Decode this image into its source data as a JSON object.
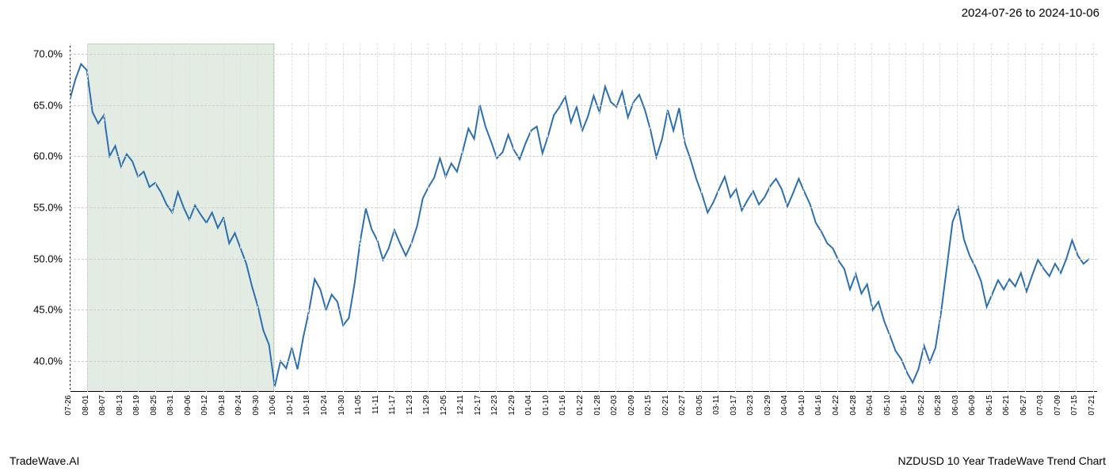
{
  "header": {
    "date_range": "2024-07-26 to 2024-10-06"
  },
  "footer": {
    "left": "TradeWave.AI",
    "right": "NZDUSD 10 Year TradeWave Trend Chart"
  },
  "chart": {
    "type": "line",
    "background_color": "#ffffff",
    "grid_color_h": "#cccccc",
    "grid_color_v": "#e0e0e0",
    "axis_color": "#000000",
    "line_color": "#2b6fb0",
    "line_width": 2,
    "highlight_fill": "rgba(144,180,140,0.25)",
    "highlight_border": "rgba(100,140,100,0.3)",
    "ylim": [
      37,
      71
    ],
    "y_ticks": [
      40,
      45,
      50,
      55,
      60,
      65,
      70
    ],
    "y_tick_labels": [
      "40.0%",
      "45.0%",
      "50.0%",
      "55.0%",
      "60.0%",
      "65.0%",
      "70.0%"
    ],
    "x_tick_labels": [
      "07-26",
      "08-01",
      "08-07",
      "08-13",
      "08-19",
      "08-25",
      "08-31",
      "09-06",
      "09-12",
      "09-18",
      "09-24",
      "09-30",
      "10-06",
      "10-12",
      "10-18",
      "10-24",
      "10-30",
      "11-05",
      "11-11",
      "11-17",
      "11-23",
      "11-29",
      "12-05",
      "12-11",
      "12-17",
      "12-23",
      "12-29",
      "01-04",
      "01-10",
      "01-16",
      "01-22",
      "01-28",
      "02-03",
      "02-09",
      "02-15",
      "02-21",
      "02-27",
      "03-05",
      "03-11",
      "03-17",
      "03-23",
      "03-29",
      "04-04",
      "04-10",
      "04-16",
      "04-22",
      "04-28",
      "05-04",
      "05-10",
      "05-16",
      "05-22",
      "05-28",
      "06-03",
      "06-09",
      "06-15",
      "06-21",
      "06-27",
      "07-03",
      "07-09",
      "07-15",
      "07-21"
    ],
    "highlight_range_idx": [
      1,
      12
    ],
    "series": [
      {
        "x": 0,
        "y": 65.5
      },
      {
        "x": 1,
        "y": 67.5
      },
      {
        "x": 2,
        "y": 69.0
      },
      {
        "x": 3,
        "y": 68.4
      },
      {
        "x": 4,
        "y": 64.3
      },
      {
        "x": 5,
        "y": 63.2
      },
      {
        "x": 6,
        "y": 64.0
      },
      {
        "x": 7,
        "y": 60.0
      },
      {
        "x": 8,
        "y": 61.0
      },
      {
        "x": 9,
        "y": 59.0
      },
      {
        "x": 10,
        "y": 60.2
      },
      {
        "x": 11,
        "y": 59.5
      },
      {
        "x": 12,
        "y": 58.0
      },
      {
        "x": 13,
        "y": 58.5
      },
      {
        "x": 14,
        "y": 57.0
      },
      {
        "x": 15,
        "y": 57.4
      },
      {
        "x": 16,
        "y": 56.5
      },
      {
        "x": 17,
        "y": 55.3
      },
      {
        "x": 18,
        "y": 54.5
      },
      {
        "x": 19,
        "y": 56.5
      },
      {
        "x": 20,
        "y": 55.0
      },
      {
        "x": 21,
        "y": 53.8
      },
      {
        "x": 22,
        "y": 55.2
      },
      {
        "x": 23,
        "y": 54.3
      },
      {
        "x": 24,
        "y": 53.5
      },
      {
        "x": 25,
        "y": 54.5
      },
      {
        "x": 26,
        "y": 53.0
      },
      {
        "x": 27,
        "y": 54.0
      },
      {
        "x": 28,
        "y": 51.5
      },
      {
        "x": 29,
        "y": 52.5
      },
      {
        "x": 30,
        "y": 51.0
      },
      {
        "x": 31,
        "y": 49.5
      },
      {
        "x": 32,
        "y": 47.3
      },
      {
        "x": 33,
        "y": 45.4
      },
      {
        "x": 34,
        "y": 43.0
      },
      {
        "x": 35,
        "y": 41.6
      },
      {
        "x": 36,
        "y": 37.5
      },
      {
        "x": 37,
        "y": 40.0
      },
      {
        "x": 38,
        "y": 39.3
      },
      {
        "x": 39,
        "y": 41.3
      },
      {
        "x": 40,
        "y": 39.2
      },
      {
        "x": 41,
        "y": 42.3
      },
      {
        "x": 42,
        "y": 44.9
      },
      {
        "x": 43,
        "y": 48.0
      },
      {
        "x": 44,
        "y": 47.0
      },
      {
        "x": 45,
        "y": 45.0
      },
      {
        "x": 46,
        "y": 46.5
      },
      {
        "x": 47,
        "y": 45.8
      },
      {
        "x": 48,
        "y": 43.5
      },
      {
        "x": 49,
        "y": 44.2
      },
      {
        "x": 50,
        "y": 47.5
      },
      {
        "x": 51,
        "y": 51.7
      },
      {
        "x": 52,
        "y": 54.9
      },
      {
        "x": 53,
        "y": 52.9
      },
      {
        "x": 54,
        "y": 51.8
      },
      {
        "x": 55,
        "y": 49.9
      },
      {
        "x": 56,
        "y": 51.0
      },
      {
        "x": 57,
        "y": 52.8
      },
      {
        "x": 58,
        "y": 51.5
      },
      {
        "x": 59,
        "y": 50.3
      },
      {
        "x": 60,
        "y": 51.5
      },
      {
        "x": 61,
        "y": 53.2
      },
      {
        "x": 62,
        "y": 55.9
      },
      {
        "x": 63,
        "y": 57.0
      },
      {
        "x": 64,
        "y": 57.9
      },
      {
        "x": 65,
        "y": 59.8
      },
      {
        "x": 66,
        "y": 58.0
      },
      {
        "x": 67,
        "y": 59.3
      },
      {
        "x": 68,
        "y": 58.5
      },
      {
        "x": 69,
        "y": 60.5
      },
      {
        "x": 70,
        "y": 62.7
      },
      {
        "x": 71,
        "y": 61.7
      },
      {
        "x": 72,
        "y": 65.0
      },
      {
        "x": 73,
        "y": 62.9
      },
      {
        "x": 74,
        "y": 61.4
      },
      {
        "x": 75,
        "y": 59.8
      },
      {
        "x": 76,
        "y": 60.4
      },
      {
        "x": 77,
        "y": 62.1
      },
      {
        "x": 78,
        "y": 60.6
      },
      {
        "x": 79,
        "y": 59.7
      },
      {
        "x": 80,
        "y": 61.2
      },
      {
        "x": 81,
        "y": 62.5
      },
      {
        "x": 82,
        "y": 62.9
      },
      {
        "x": 83,
        "y": 60.3
      },
      {
        "x": 84,
        "y": 62.0
      },
      {
        "x": 85,
        "y": 64.0
      },
      {
        "x": 86,
        "y": 64.8
      },
      {
        "x": 87,
        "y": 65.8
      },
      {
        "x": 88,
        "y": 63.3
      },
      {
        "x": 89,
        "y": 64.8
      },
      {
        "x": 90,
        "y": 62.5
      },
      {
        "x": 91,
        "y": 63.9
      },
      {
        "x": 92,
        "y": 65.9
      },
      {
        "x": 93,
        "y": 64.3
      },
      {
        "x": 94,
        "y": 66.8
      },
      {
        "x": 95,
        "y": 65.3
      },
      {
        "x": 96,
        "y": 64.8
      },
      {
        "x": 97,
        "y": 66.3
      },
      {
        "x": 98,
        "y": 63.8
      },
      {
        "x": 99,
        "y": 65.3
      },
      {
        "x": 100,
        "y": 66.0
      },
      {
        "x": 101,
        "y": 64.5
      },
      {
        "x": 102,
        "y": 62.5
      },
      {
        "x": 103,
        "y": 59.9
      },
      {
        "x": 104,
        "y": 61.7
      },
      {
        "x": 105,
        "y": 64.5
      },
      {
        "x": 106,
        "y": 62.5
      },
      {
        "x": 107,
        "y": 64.7
      },
      {
        "x": 108,
        "y": 61.3
      },
      {
        "x": 109,
        "y": 59.7
      },
      {
        "x": 110,
        "y": 57.8
      },
      {
        "x": 111,
        "y": 56.3
      },
      {
        "x": 112,
        "y": 54.5
      },
      {
        "x": 113,
        "y": 55.5
      },
      {
        "x": 114,
        "y": 56.8
      },
      {
        "x": 115,
        "y": 58.0
      },
      {
        "x": 116,
        "y": 56.0
      },
      {
        "x": 117,
        "y": 56.8
      },
      {
        "x": 118,
        "y": 54.7
      },
      {
        "x": 119,
        "y": 55.7
      },
      {
        "x": 120,
        "y": 56.6
      },
      {
        "x": 121,
        "y": 55.3
      },
      {
        "x": 122,
        "y": 56.0
      },
      {
        "x": 123,
        "y": 57.1
      },
      {
        "x": 124,
        "y": 57.8
      },
      {
        "x": 125,
        "y": 56.8
      },
      {
        "x": 126,
        "y": 55.1
      },
      {
        "x": 127,
        "y": 56.4
      },
      {
        "x": 128,
        "y": 57.8
      },
      {
        "x": 129,
        "y": 56.5
      },
      {
        "x": 130,
        "y": 55.3
      },
      {
        "x": 131,
        "y": 53.5
      },
      {
        "x": 132,
        "y": 52.6
      },
      {
        "x": 133,
        "y": 51.5
      },
      {
        "x": 134,
        "y": 51.0
      },
      {
        "x": 135,
        "y": 49.8
      },
      {
        "x": 136,
        "y": 49.0
      },
      {
        "x": 137,
        "y": 47.0
      },
      {
        "x": 138,
        "y": 48.5
      },
      {
        "x": 139,
        "y": 46.6
      },
      {
        "x": 140,
        "y": 47.5
      },
      {
        "x": 141,
        "y": 45.0
      },
      {
        "x": 142,
        "y": 45.8
      },
      {
        "x": 143,
        "y": 43.9
      },
      {
        "x": 144,
        "y": 42.5
      },
      {
        "x": 145,
        "y": 41.0
      },
      {
        "x": 146,
        "y": 40.2
      },
      {
        "x": 147,
        "y": 38.9
      },
      {
        "x": 148,
        "y": 37.9
      },
      {
        "x": 149,
        "y": 39.2
      },
      {
        "x": 150,
        "y": 41.5
      },
      {
        "x": 151,
        "y": 39.9
      },
      {
        "x": 152,
        "y": 41.3
      },
      {
        "x": 153,
        "y": 44.8
      },
      {
        "x": 154,
        "y": 49.2
      },
      {
        "x": 155,
        "y": 53.6
      },
      {
        "x": 156,
        "y": 55.0
      },
      {
        "x": 157,
        "y": 51.9
      },
      {
        "x": 158,
        "y": 50.3
      },
      {
        "x": 159,
        "y": 49.2
      },
      {
        "x": 160,
        "y": 47.8
      },
      {
        "x": 161,
        "y": 45.3
      },
      {
        "x": 162,
        "y": 46.6
      },
      {
        "x": 163,
        "y": 47.9
      },
      {
        "x": 164,
        "y": 47.0
      },
      {
        "x": 165,
        "y": 48.0
      },
      {
        "x": 166,
        "y": 47.3
      },
      {
        "x": 167,
        "y": 48.6
      },
      {
        "x": 168,
        "y": 46.8
      },
      {
        "x": 169,
        "y": 48.4
      },
      {
        "x": 170,
        "y": 49.9
      },
      {
        "x": 171,
        "y": 49.0
      },
      {
        "x": 172,
        "y": 48.3
      },
      {
        "x": 173,
        "y": 49.5
      },
      {
        "x": 174,
        "y": 48.6
      },
      {
        "x": 175,
        "y": 50.0
      },
      {
        "x": 176,
        "y": 51.8
      },
      {
        "x": 177,
        "y": 50.3
      },
      {
        "x": 178,
        "y": 49.5
      },
      {
        "x": 179,
        "y": 50.0
      }
    ]
  }
}
